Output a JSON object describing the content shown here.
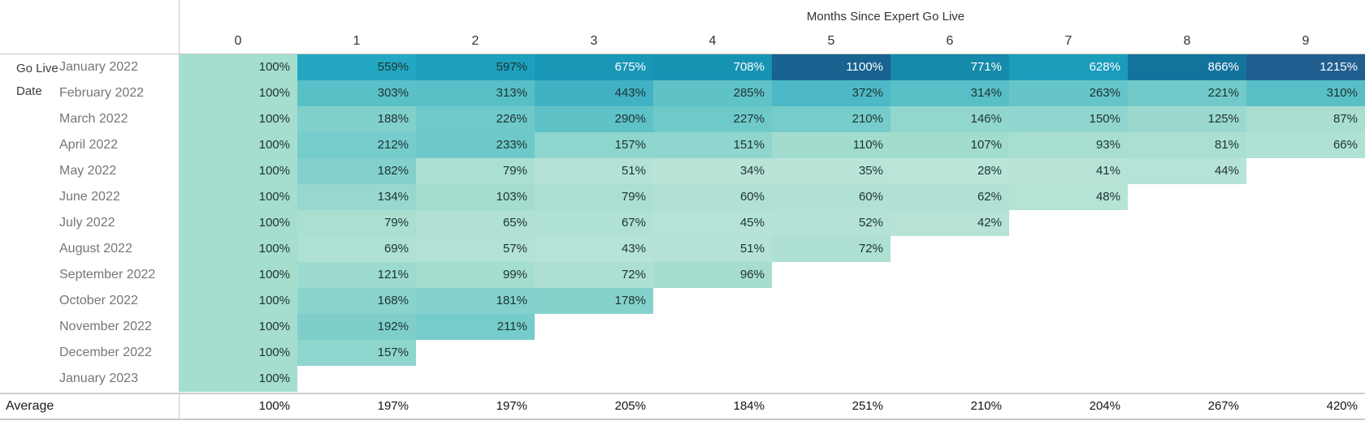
{
  "chart_data": {
    "type": "heatmap",
    "title": "Months Since Expert Go Live",
    "row_axis_title": "Go Live Date",
    "columns": [
      "0",
      "1",
      "2",
      "3",
      "4",
      "5",
      "6",
      "7",
      "8",
      "9"
    ],
    "rows": [
      "January 2022",
      "February 2022",
      "March 2022",
      "April 2022",
      "May 2022",
      "June 2022",
      "July 2022",
      "August 2022",
      "September 2022",
      "October 2022",
      "November 2022",
      "December 2022",
      "January 2023"
    ],
    "values": [
      [
        100,
        559,
        597,
        675,
        708,
        1100,
        771,
        628,
        866,
        1215
      ],
      [
        100,
        303,
        313,
        443,
        285,
        372,
        314,
        263,
        221,
        310
      ],
      [
        100,
        188,
        226,
        290,
        227,
        210,
        146,
        150,
        125,
        87
      ],
      [
        100,
        212,
        233,
        157,
        151,
        110,
        107,
        93,
        81,
        66
      ],
      [
        100,
        182,
        79,
        51,
        34,
        35,
        28,
        41,
        44,
        null
      ],
      [
        100,
        134,
        103,
        79,
        60,
        60,
        62,
        48,
        null,
        null
      ],
      [
        100,
        79,
        65,
        67,
        45,
        52,
        42,
        null,
        null,
        null
      ],
      [
        100,
        69,
        57,
        43,
        51,
        72,
        null,
        null,
        null,
        null
      ],
      [
        100,
        121,
        99,
        72,
        96,
        null,
        null,
        null,
        null,
        null
      ],
      [
        100,
        168,
        181,
        178,
        null,
        null,
        null,
        null,
        null,
        null
      ],
      [
        100,
        192,
        211,
        null,
        null,
        null,
        null,
        null,
        null,
        null
      ],
      [
        100,
        157,
        null,
        null,
        null,
        null,
        null,
        null,
        null,
        null
      ],
      [
        100,
        null,
        null,
        null,
        null,
        null,
        null,
        null,
        null,
        null
      ]
    ],
    "average_label": "Average",
    "average_values": [
      100,
      197,
      197,
      205,
      184,
      251,
      210,
      204,
      267,
      420
    ],
    "value_suffix": "%",
    "color_scale": {
      "stops": [
        [
          28,
          "#bae5d9"
        ],
        [
          34,
          "#b9e4d8"
        ],
        [
          100,
          "#a5ddcf"
        ],
        [
          157,
          "#8ed5ce"
        ],
        [
          188,
          "#80d0cb"
        ],
        [
          226,
          "#6fc9c9"
        ],
        [
          303,
          "#5ac0c7"
        ],
        [
          443,
          "#41b2c4"
        ],
        [
          559,
          "#23a7c3"
        ],
        [
          597,
          "#1ca0bd"
        ],
        [
          675,
          "#1897b7"
        ],
        [
          708,
          "#1793b3"
        ],
        [
          771,
          "#168aab"
        ],
        [
          866,
          "#14739c"
        ],
        [
          1100,
          "#186390"
        ],
        [
          1215,
          "#215e90"
        ]
      ]
    },
    "text_dark": "#1d3331",
    "text_light": "#ffffff",
    "light_text_threshold": 610,
    "line_color": "#c9c9c9"
  }
}
